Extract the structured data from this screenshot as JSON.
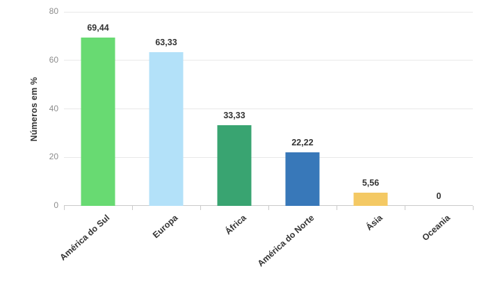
{
  "chart_data": {
    "type": "bar",
    "title": "",
    "xlabel": "",
    "ylabel": "Números em %",
    "categories": [
      "América do Sul",
      "Europa",
      "África",
      "América do Norte",
      "Ásia",
      "Oceania"
    ],
    "values": [
      69.44,
      63.33,
      33.33,
      22.22,
      5.56,
      0
    ],
    "value_labels": [
      "69,44",
      "63,33",
      "33,33",
      "22,22",
      "5,56",
      "0"
    ],
    "bar_colors": [
      "#68da72",
      "#b3e1f9",
      "#39a471",
      "#3878b9",
      "#f4c964",
      null
    ],
    "ylim": [
      0,
      80
    ],
    "yticks": [
      0,
      20,
      40,
      60,
      80
    ],
    "grid": true,
    "legend": "none",
    "colors": {
      "grid": "#e8e8e8",
      "axis": "#c9c9c9",
      "tick_text": "#8c8c8c",
      "label_text": "#333333",
      "background": "#ffffff"
    }
  }
}
